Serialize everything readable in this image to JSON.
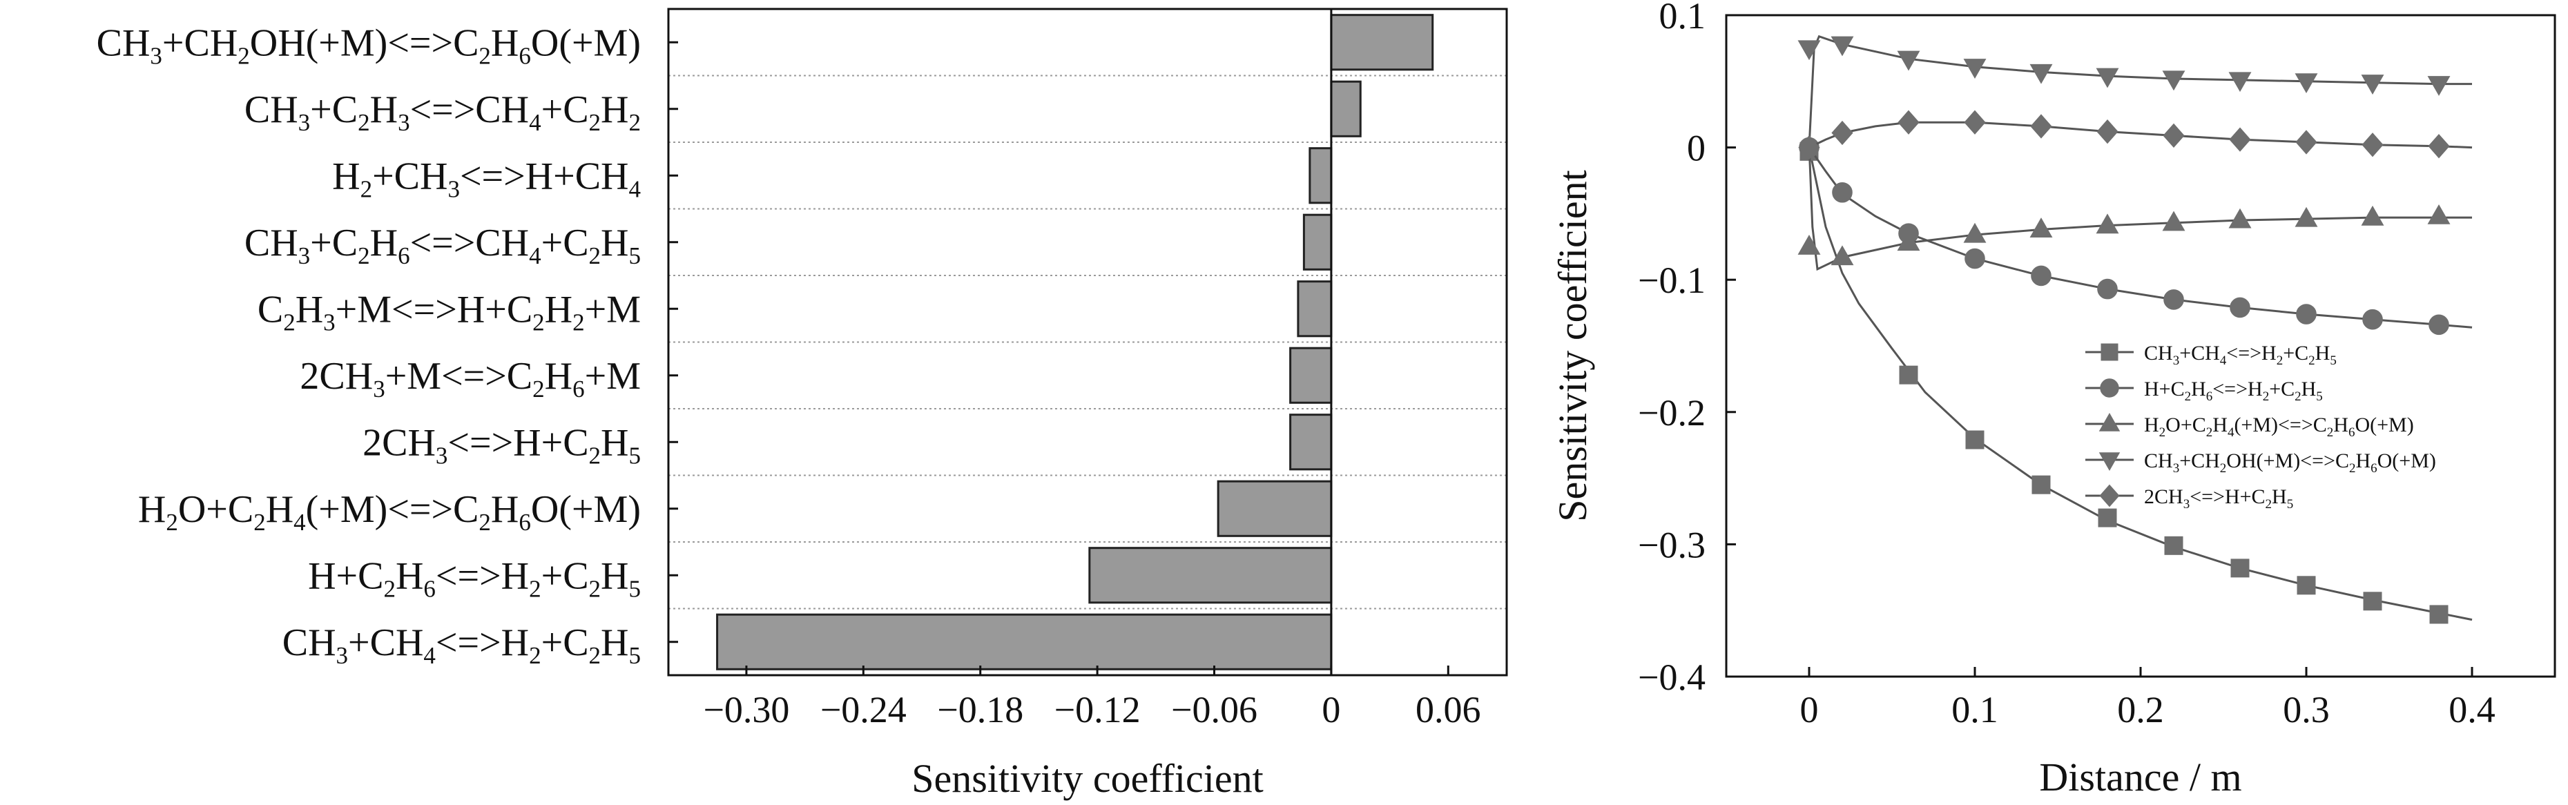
{
  "chart_data": [
    {
      "type": "bar",
      "orientation": "horizontal",
      "xlabel": "Sensitivity coefficient",
      "xlim": [
        -0.34,
        0.09
      ],
      "xticks": [
        -0.3,
        -0.24,
        -0.18,
        -0.12,
        -0.06,
        0,
        0.06
      ],
      "xtick_labels": [
        "−0.30",
        "−0.24",
        "−0.18",
        "−0.12",
        "−0.06",
        "0",
        "0.06"
      ],
      "grid": "dotted horizontal separators",
      "bar_color": "#999999",
      "categories": [
        "CH3+CH2OH(+M)<=>C2H6O(+M)",
        "CH3+C2H3<=>CH4+C2H2",
        "H2+CH3<=>H+CH4",
        "CH3+C2H6<=>CH4+C2H5",
        "C2H3+M<=>H+C2H2+M",
        "2CH3+M<=>C2H6+M",
        "2CH3<=>H+C2H5",
        "H2O+C2H4(+M)<=>C2H6O(+M)",
        "H+C2H6<=>H2+C2H5",
        "CH3+CH4<=>H2+C2H5"
      ],
      "category_labels": [
        [
          {
            "t": "CH"
          },
          {
            "t": "3",
            "s": "sub"
          },
          {
            "t": "+CH"
          },
          {
            "t": "2",
            "s": "sub"
          },
          {
            "t": "OH(+M)<=>C"
          },
          {
            "t": "2",
            "s": "sub"
          },
          {
            "t": "H"
          },
          {
            "t": "6",
            "s": "sub"
          },
          {
            "t": "O(+M)"
          }
        ],
        [
          {
            "t": "CH"
          },
          {
            "t": "3",
            "s": "sub"
          },
          {
            "t": "+C"
          },
          {
            "t": "2",
            "s": "sub"
          },
          {
            "t": "H"
          },
          {
            "t": "3",
            "s": "sub"
          },
          {
            "t": "<=>CH"
          },
          {
            "t": "4",
            "s": "sub"
          },
          {
            "t": "+C"
          },
          {
            "t": "2",
            "s": "sub"
          },
          {
            "t": "H"
          },
          {
            "t": "2",
            "s": "sub"
          }
        ],
        [
          {
            "t": "H"
          },
          {
            "t": "2",
            "s": "sub"
          },
          {
            "t": "+CH"
          },
          {
            "t": "3",
            "s": "sub"
          },
          {
            "t": "<=>H+CH"
          },
          {
            "t": "4",
            "s": "sub"
          }
        ],
        [
          {
            "t": "CH"
          },
          {
            "t": "3",
            "s": "sub"
          },
          {
            "t": "+C"
          },
          {
            "t": "2",
            "s": "sub"
          },
          {
            "t": "H"
          },
          {
            "t": "6",
            "s": "sub"
          },
          {
            "t": "<=>CH"
          },
          {
            "t": "4",
            "s": "sub"
          },
          {
            "t": "+C"
          },
          {
            "t": "2",
            "s": "sub"
          },
          {
            "t": "H"
          },
          {
            "t": "5",
            "s": "sub"
          }
        ],
        [
          {
            "t": "C"
          },
          {
            "t": "2",
            "s": "sub"
          },
          {
            "t": "H"
          },
          {
            "t": "3",
            "s": "sub"
          },
          {
            "t": "+M<=>H+C"
          },
          {
            "t": "2",
            "s": "sub"
          },
          {
            "t": "H"
          },
          {
            "t": "2",
            "s": "sub"
          },
          {
            "t": "+M"
          }
        ],
        [
          {
            "t": "2CH"
          },
          {
            "t": "3",
            "s": "sub"
          },
          {
            "t": "+M<=>C"
          },
          {
            "t": "2",
            "s": "sub"
          },
          {
            "t": "H"
          },
          {
            "t": "6",
            "s": "sub"
          },
          {
            "t": "+M"
          }
        ],
        [
          {
            "t": "2CH"
          },
          {
            "t": "3",
            "s": "sub"
          },
          {
            "t": "<=>H+C"
          },
          {
            "t": "2",
            "s": "sub"
          },
          {
            "t": "H"
          },
          {
            "t": "5",
            "s": "sub"
          }
        ],
        [
          {
            "t": "H"
          },
          {
            "t": "2",
            "s": "sub"
          },
          {
            "t": "O+C"
          },
          {
            "t": "2",
            "s": "sub"
          },
          {
            "t": "H"
          },
          {
            "t": "4",
            "s": "sub"
          },
          {
            "t": "(+M)<=>C"
          },
          {
            "t": "2",
            "s": "sub"
          },
          {
            "t": "H"
          },
          {
            "t": "6",
            "s": "sub"
          },
          {
            "t": "O(+M)"
          }
        ],
        [
          {
            "t": "H+C"
          },
          {
            "t": "2",
            "s": "sub"
          },
          {
            "t": "H"
          },
          {
            "t": "6",
            "s": "sub"
          },
          {
            "t": "<=>H"
          },
          {
            "t": "2",
            "s": "sub"
          },
          {
            "t": "+C"
          },
          {
            "t": "2",
            "s": "sub"
          },
          {
            "t": "H"
          },
          {
            "t": "5",
            "s": "sub"
          }
        ],
        [
          {
            "t": "CH"
          },
          {
            "t": "3",
            "s": "sub"
          },
          {
            "t": "+CH"
          },
          {
            "t": "4",
            "s": "sub"
          },
          {
            "t": "<=>H"
          },
          {
            "t": "2",
            "s": "sub"
          },
          {
            "t": "+C"
          },
          {
            "t": "2",
            "s": "sub"
          },
          {
            "t": "H"
          },
          {
            "t": "5",
            "s": "sub"
          }
        ]
      ],
      "values": [
        0.052,
        0.015,
        -0.011,
        -0.014,
        -0.017,
        -0.021,
        -0.021,
        -0.058,
        -0.124,
        -0.315
      ]
    },
    {
      "type": "line",
      "xlabel": "Distance / m",
      "ylabel": "Sensitivity coefficient",
      "xlim": [
        -0.05,
        0.45
      ],
      "ylim": [
        -0.4,
        0.1
      ],
      "xticks": [
        0,
        0.1,
        0.2,
        0.3,
        0.4
      ],
      "xtick_labels": [
        "0",
        "0.1",
        "0.2",
        "0.3",
        "0.4"
      ],
      "yticks": [
        0.1,
        0,
        -0.1,
        -0.2,
        -0.3,
        -0.4
      ],
      "ytick_labels": [
        "0.1",
        "0",
        "−0.1",
        "−0.2",
        "−0.3",
        "−0.4"
      ],
      "legend_position": "middle-right",
      "line_color": "#555555",
      "series": [
        {
          "name": "CH3+CH4<=>H2+C2H5",
          "label": [
            {
              "t": "CH"
            },
            {
              "t": "3",
              "s": "sub"
            },
            {
              "t": "+CH"
            },
            {
              "t": "4",
              "s": "sub"
            },
            {
              "t": "<=>H"
            },
            {
              "t": "2",
              "s": "sub"
            },
            {
              "t": "+C"
            },
            {
              "t": "2",
              "s": "sub"
            },
            {
              "t": "H"
            },
            {
              "t": "5",
              "s": "sub"
            }
          ],
          "marker": "square",
          "curve_x": [
            0,
            0.01,
            0.02,
            0.03,
            0.05,
            0.07,
            0.1,
            0.14,
            0.18,
            0.22,
            0.26,
            0.3,
            0.34,
            0.38,
            0.4
          ],
          "curve_y": [
            0,
            -0.06,
            -0.095,
            -0.118,
            -0.152,
            -0.185,
            -0.22,
            -0.255,
            -0.282,
            -0.302,
            -0.318,
            -0.331,
            -0.342,
            -0.352,
            -0.357
          ],
          "points_x": [
            0,
            0.06,
            0.1,
            0.14,
            0.18,
            0.22,
            0.26,
            0.3,
            0.34,
            0.38
          ],
          "points_y": [
            -0.003,
            -0.172,
            -0.221,
            -0.255,
            -0.28,
            -0.301,
            -0.318,
            -0.331,
            -0.343,
            -0.353
          ]
        },
        {
          "name": "H+C2H6<=>H2+C2H5",
          "label": [
            {
              "t": "H+C"
            },
            {
              "t": "2",
              "s": "sub"
            },
            {
              "t": "H"
            },
            {
              "t": "6",
              "s": "sub"
            },
            {
              "t": "<=>H"
            },
            {
              "t": "2",
              "s": "sub"
            },
            {
              "t": "+C"
            },
            {
              "t": "2",
              "s": "sub"
            },
            {
              "t": "H"
            },
            {
              "t": "5",
              "s": "sub"
            }
          ],
          "marker": "circle",
          "curve_x": [
            0,
            0.01,
            0.02,
            0.04,
            0.06,
            0.1,
            0.14,
            0.18,
            0.22,
            0.26,
            0.3,
            0.34,
            0.38,
            0.4
          ],
          "curve_y": [
            0,
            -0.018,
            -0.035,
            -0.052,
            -0.065,
            -0.084,
            -0.097,
            -0.107,
            -0.115,
            -0.121,
            -0.126,
            -0.13,
            -0.134,
            -0.136
          ],
          "points_x": [
            0,
            0.02,
            0.06,
            0.1,
            0.14,
            0.18,
            0.22,
            0.26,
            0.3,
            0.34,
            0.38
          ],
          "points_y": [
            0,
            -0.034,
            -0.065,
            -0.084,
            -0.097,
            -0.107,
            -0.115,
            -0.121,
            -0.126,
            -0.13,
            -0.134
          ]
        },
        {
          "name": "H2O+C2H4(+M)<=>C2H6O(+M)",
          "label": [
            {
              "t": "H"
            },
            {
              "t": "2",
              "s": "sub"
            },
            {
              "t": "O+C"
            },
            {
              "t": "2",
              "s": "sub"
            },
            {
              "t": "H"
            },
            {
              "t": "4",
              "s": "sub"
            },
            {
              "t": "(+M)<=>C"
            },
            {
              "t": "2",
              "s": "sub"
            },
            {
              "t": "H"
            },
            {
              "t": "6",
              "s": "sub"
            },
            {
              "t": "O(+M)"
            }
          ],
          "marker": "triangle-up",
          "curve_x": [
            0,
            0.002,
            0.005,
            0.02,
            0.06,
            0.1,
            0.14,
            0.18,
            0.22,
            0.26,
            0.3,
            0.34,
            0.38,
            0.4
          ],
          "curve_y": [
            0.002,
            -0.06,
            -0.092,
            -0.083,
            -0.072,
            -0.066,
            -0.062,
            -0.059,
            -0.057,
            -0.055,
            -0.054,
            -0.053,
            -0.053,
            -0.053
          ],
          "points_x": [
            0,
            0.02,
            0.06,
            0.1,
            0.14,
            0.18,
            0.22,
            0.26,
            0.3,
            0.34,
            0.38
          ],
          "points_y": [
            -0.075,
            -0.083,
            -0.072,
            -0.066,
            -0.062,
            -0.059,
            -0.057,
            -0.055,
            -0.054,
            -0.053,
            -0.052
          ]
        },
        {
          "name": "CH3+CH2OH(+M)<=>C2H6O(+M)",
          "label": [
            {
              "t": "CH"
            },
            {
              "t": "3",
              "s": "sub"
            },
            {
              "t": "+CH"
            },
            {
              "t": "2",
              "s": "sub"
            },
            {
              "t": "OH(+M)<=>C"
            },
            {
              "t": "2",
              "s": "sub"
            },
            {
              "t": "H"
            },
            {
              "t": "6",
              "s": "sub"
            },
            {
              "t": "O(+M)"
            }
          ],
          "marker": "triangle-down",
          "curve_x": [
            0,
            0.003,
            0.006,
            0.02,
            0.06,
            0.1,
            0.14,
            0.18,
            0.22,
            0.26,
            0.3,
            0.34,
            0.38,
            0.4
          ],
          "curve_y": [
            0,
            0.075,
            0.084,
            0.078,
            0.067,
            0.061,
            0.057,
            0.054,
            0.052,
            0.051,
            0.05,
            0.049,
            0.048,
            0.048
          ],
          "points_x": [
            0,
            0.02,
            0.06,
            0.1,
            0.14,
            0.18,
            0.22,
            0.26,
            0.3,
            0.34,
            0.38
          ],
          "points_y": [
            0.075,
            0.078,
            0.067,
            0.061,
            0.057,
            0.054,
            0.052,
            0.051,
            0.05,
            0.049,
            0.048
          ]
        },
        {
          "name": "2CH3<=>H+C2H5",
          "label": [
            {
              "t": "2CH"
            },
            {
              "t": "3",
              "s": "sub"
            },
            {
              "t": "<=>H+C"
            },
            {
              "t": "2",
              "s": "sub"
            },
            {
              "t": "H"
            },
            {
              "t": "5",
              "s": "sub"
            }
          ],
          "marker": "diamond",
          "curve_x": [
            0,
            0.01,
            0.02,
            0.04,
            0.06,
            0.1,
            0.14,
            0.18,
            0.22,
            0.26,
            0.3,
            0.34,
            0.38,
            0.4
          ],
          "curve_y": [
            0,
            0.006,
            0.011,
            0.016,
            0.019,
            0.019,
            0.016,
            0.012,
            0.009,
            0.006,
            0.004,
            0.002,
            0.001,
            0
          ],
          "points_x": [
            0,
            0.02,
            0.06,
            0.1,
            0.14,
            0.18,
            0.22,
            0.26,
            0.3,
            0.34,
            0.38
          ],
          "points_y": [
            0,
            0.011,
            0.019,
            0.019,
            0.016,
            0.012,
            0.009,
            0.006,
            0.004,
            0.002,
            0.001
          ]
        }
      ]
    }
  ]
}
